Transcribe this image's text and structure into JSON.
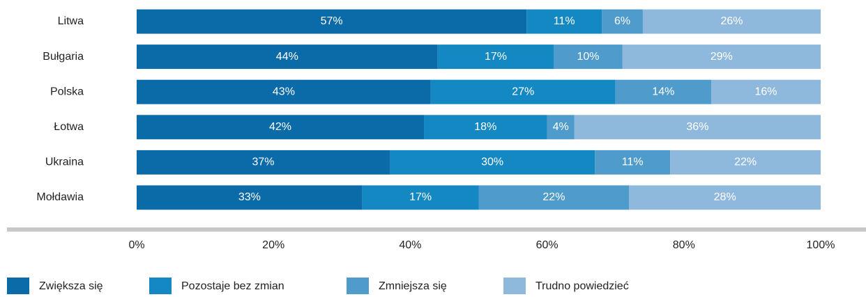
{
  "chart_data": {
    "type": "stacked-barh",
    "categories": [
      "Litwa",
      "Bułgaria",
      "Polska",
      "Łotwa",
      "Ukraina",
      "Mołdawia"
    ],
    "series": [
      {
        "name": "Zwiększa się",
        "color": "#0b6aa8",
        "values": [
          57,
          44,
          43,
          42,
          37,
          33
        ],
        "value_labels": [
          "57%",
          "44%",
          "43%",
          "42%",
          "37%",
          "33%"
        ]
      },
      {
        "name": "Pozostaje bez zmian",
        "color": "#1488c2",
        "values": [
          11,
          17,
          27,
          18,
          30,
          17
        ],
        "value_labels": [
          "11%",
          "17%",
          "27%",
          "18%",
          "30%",
          "17%"
        ]
      },
      {
        "name": "Zmniejsza się",
        "color": "#4e9bcc",
        "values": [
          6,
          10,
          14,
          4,
          11,
          22
        ],
        "value_labels": [
          "6%",
          "10%",
          "14%",
          "4%",
          "11%",
          "22%"
        ]
      },
      {
        "name": "Trudno powiedzieć",
        "color": "#8fb9dc",
        "values": [
          26,
          29,
          16,
          36,
          22,
          28
        ],
        "value_labels": [
          "26%",
          "29%",
          "16%",
          "36%",
          "22%",
          "28%"
        ]
      }
    ],
    "xlim": [
      0,
      100
    ],
    "xticks": [
      {
        "value": 0,
        "label": "0%"
      },
      {
        "value": 20,
        "label": "20%"
      },
      {
        "value": 40,
        "label": "40%"
      },
      {
        "value": 60,
        "label": "60%"
      },
      {
        "value": 80,
        "label": "80%"
      },
      {
        "value": 100,
        "label": "100%"
      }
    ]
  }
}
